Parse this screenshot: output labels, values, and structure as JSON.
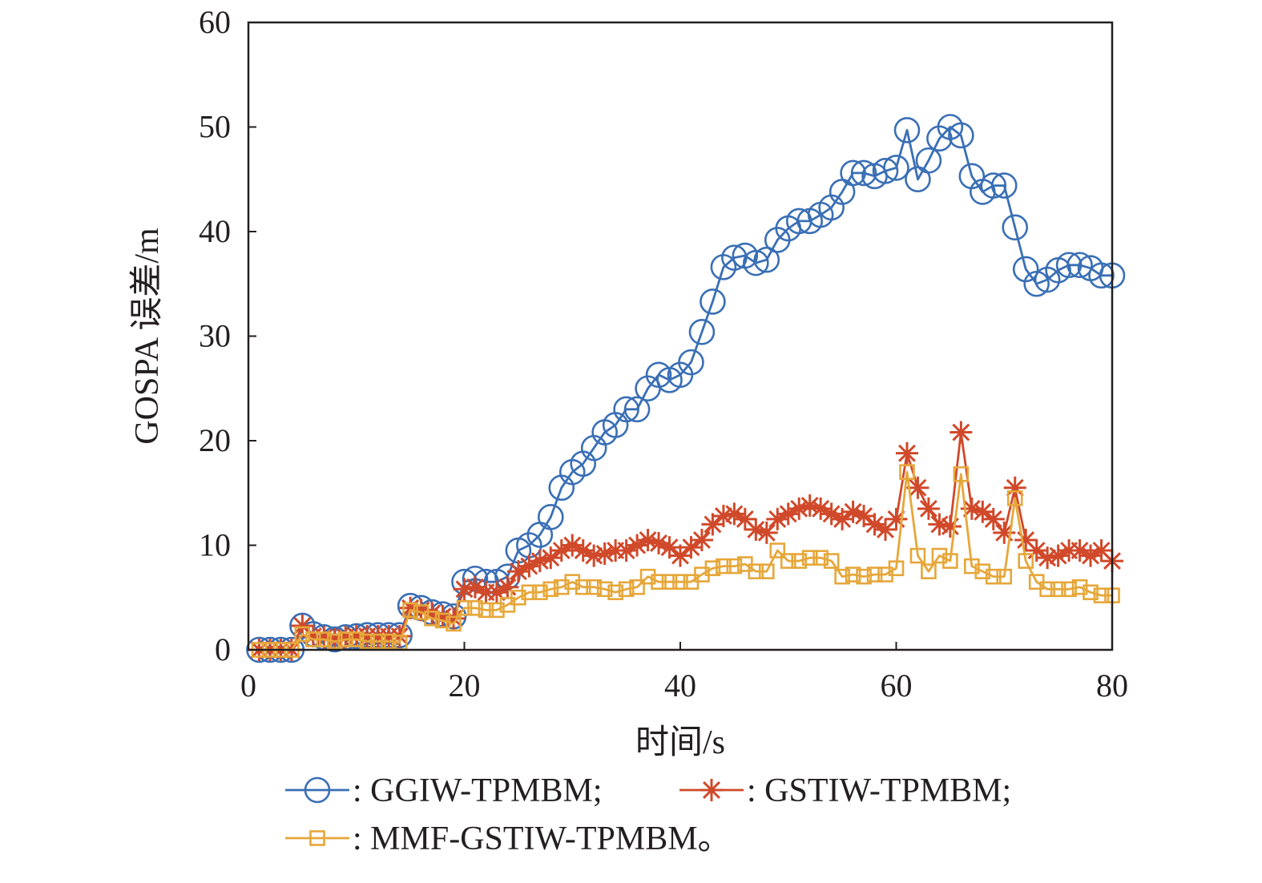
{
  "chart_data": {
    "type": "line",
    "xlabel": "时间/s",
    "ylabel": "GOSPA 误差/m",
    "xlim": [
      0,
      80
    ],
    "ylim": [
      0,
      60
    ],
    "xticks": [
      0,
      20,
      40,
      60,
      80
    ],
    "yticks": [
      0,
      10,
      20,
      30,
      40,
      50,
      60
    ],
    "grid": false,
    "legend_position": "bottom",
    "x": [
      1,
      2,
      3,
      4,
      5,
      6,
      7,
      8,
      9,
      10,
      11,
      12,
      13,
      14,
      15,
      16,
      17,
      18,
      19,
      20,
      21,
      22,
      23,
      24,
      25,
      26,
      27,
      28,
      29,
      30,
      31,
      32,
      33,
      34,
      35,
      36,
      37,
      38,
      39,
      40,
      41,
      42,
      43,
      44,
      45,
      46,
      47,
      48,
      49,
      50,
      51,
      52,
      53,
      54,
      55,
      56,
      57,
      58,
      59,
      60,
      61,
      62,
      63,
      64,
      65,
      66,
      67,
      68,
      69,
      70,
      71,
      72,
      73,
      74,
      75,
      76,
      77,
      78,
      79,
      80
    ],
    "series": [
      {
        "name": "GGIW-TPMBM",
        "legend_label": ": GGIW-TPMBM;",
        "color": "#3a6fb5",
        "marker": "circle",
        "values": [
          0,
          0,
          0,
          0,
          2.3,
          1.5,
          1.2,
          1.0,
          1.2,
          1.3,
          1.4,
          1.4,
          1.4,
          1.4,
          4.2,
          4.0,
          3.6,
          3.4,
          3.2,
          6.5,
          6.8,
          6.5,
          6.5,
          7.0,
          9.5,
          10.0,
          11.0,
          12.7,
          15.5,
          17.0,
          17.8,
          19.3,
          20.8,
          21.5,
          23.0,
          23.0,
          25.0,
          26.3,
          25.8,
          26.3,
          27.5,
          30.4,
          33.3,
          36.6,
          37.5,
          37.7,
          37.0,
          37.3,
          39.2,
          40.3,
          41.0,
          41.0,
          41.6,
          42.3,
          43.8,
          45.6,
          45.6,
          45.3,
          45.8,
          46.1,
          49.7,
          45.0,
          46.8,
          48.9,
          50.0,
          49.2,
          45.3,
          43.8,
          44.4,
          44.4,
          40.4,
          36.4,
          35.0,
          35.4,
          36.3,
          36.8,
          36.8,
          36.5,
          35.8,
          35.8
        ]
      },
      {
        "name": "GSTIW-TPMBM",
        "legend_label": ": GSTIW-TPMBM;",
        "color": "#d0492a",
        "marker": "asterisk",
        "values": [
          0,
          0,
          0,
          0,
          2.3,
          1.3,
          1.2,
          1.0,
          1.2,
          1.3,
          1.3,
          1.3,
          1.3,
          1.3,
          4.0,
          3.8,
          3.5,
          3.2,
          3.0,
          5.8,
          6.0,
          5.5,
          5.5,
          6.0,
          7.5,
          8.0,
          8.5,
          8.8,
          9.5,
          10.0,
          9.5,
          9.0,
          9.2,
          9.5,
          9.5,
          10.0,
          10.5,
          10.2,
          9.8,
          9.0,
          9.8,
          10.5,
          12.0,
          12.8,
          13.0,
          12.5,
          11.5,
          11.2,
          12.5,
          13.0,
          13.5,
          13.8,
          13.5,
          13.0,
          12.5,
          13.2,
          12.8,
          12.0,
          11.5,
          12.5,
          18.8,
          15.5,
          13.5,
          12.0,
          11.8,
          20.8,
          13.5,
          13.2,
          12.5,
          11.2,
          15.5,
          10.5,
          9.5,
          8.8,
          9.0,
          9.5,
          9.5,
          9.0,
          9.5,
          8.5
        ]
      },
      {
        "name": "MMF-GSTIW-TPMBM",
        "legend_label": ": MMF-GSTIW-TPMBM。",
        "color": "#e6a73a",
        "marker": "square",
        "values": [
          0,
          0,
          0,
          0,
          1.5,
          1.0,
          1.0,
          0.8,
          1.0,
          1.0,
          0.8,
          0.8,
          0.8,
          0.7,
          3.8,
          3.6,
          3.0,
          2.8,
          2.5,
          4.0,
          4.0,
          3.8,
          3.8,
          4.3,
          5.0,
          5.5,
          5.5,
          5.8,
          6.0,
          6.5,
          6.0,
          6.0,
          5.8,
          5.5,
          5.8,
          6.0,
          7.0,
          6.5,
          6.5,
          6.5,
          6.5,
          7.2,
          7.8,
          8.0,
          8.0,
          8.2,
          7.5,
          7.5,
          9.5,
          8.5,
          8.5,
          8.8,
          8.8,
          8.5,
          7.0,
          7.2,
          7.0,
          7.2,
          7.2,
          7.8,
          17.0,
          9.0,
          7.5,
          9.0,
          8.5,
          16.8,
          8.0,
          7.5,
          7.0,
          7.0,
          14.5,
          8.5,
          6.5,
          5.8,
          5.8,
          5.8,
          6.0,
          5.5,
          5.2,
          5.2
        ]
      }
    ]
  }
}
